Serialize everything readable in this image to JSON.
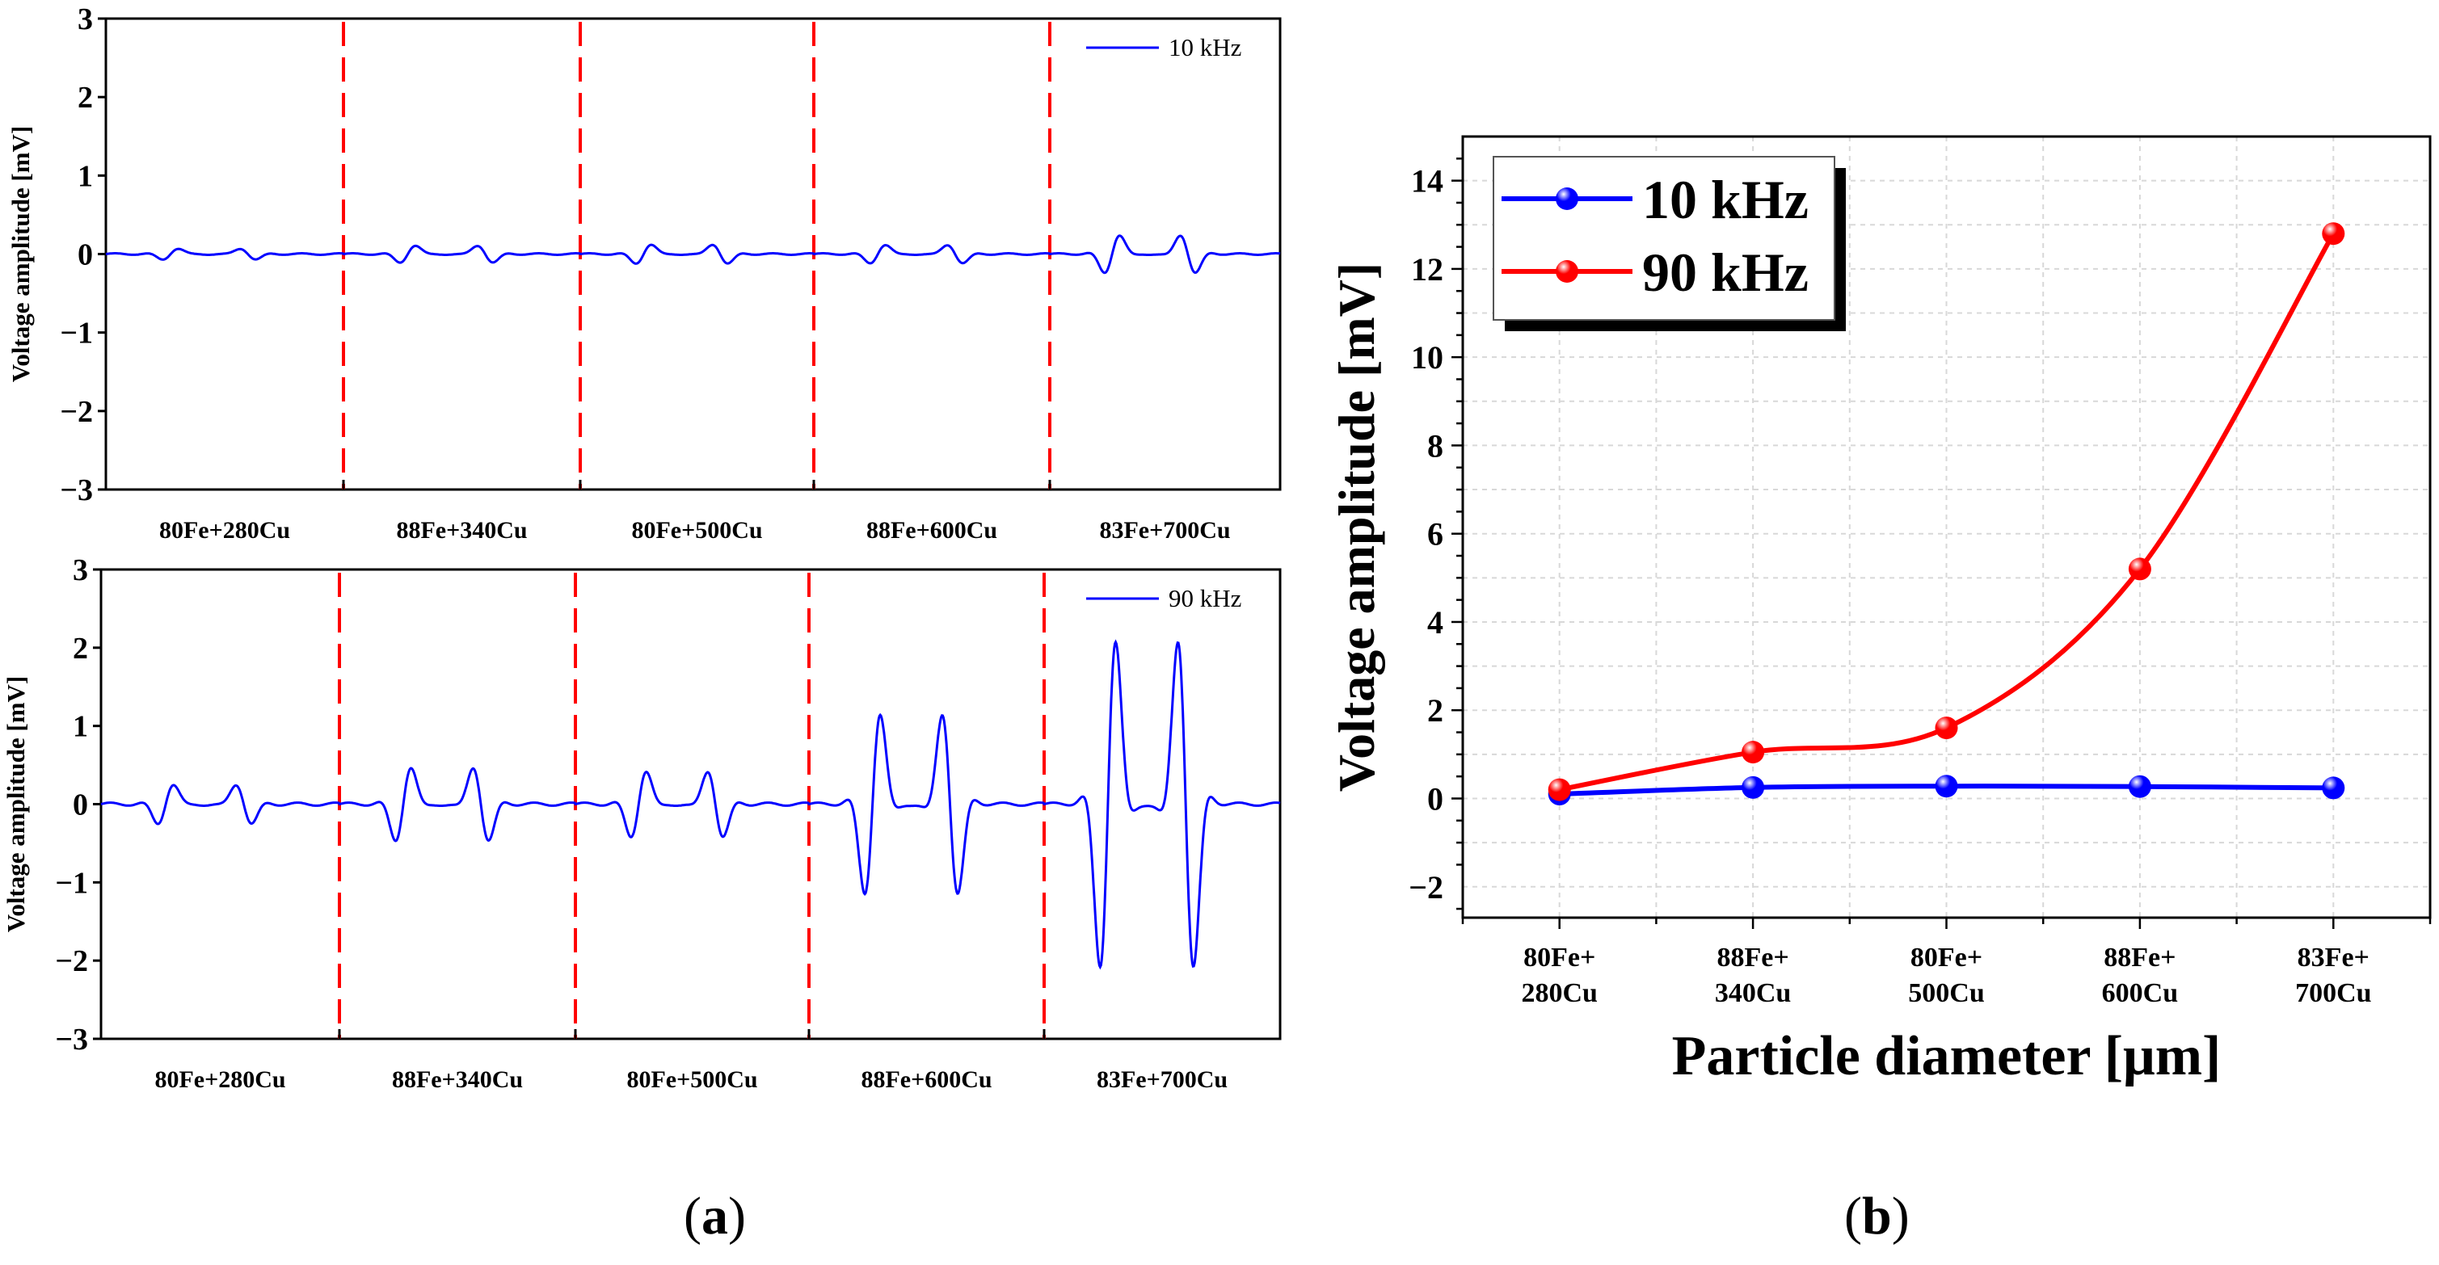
{
  "captions": {
    "a_open": "(",
    "a_letter": "a",
    "a_close": ")",
    "b_open": "(",
    "b_letter": "b",
    "b_close": ")"
  },
  "chart_data": [
    {
      "type": "line",
      "panel": "a-top",
      "ylabel": "Voltage amplitude [mV]",
      "ylim": [
        -3,
        3
      ],
      "yticks": [
        -3,
        -2,
        -1,
        0,
        1,
        2,
        3
      ],
      "legend": "10 kHz",
      "legend_position": "top-right",
      "series_color": "#0000ff",
      "separator_color": "#ff0000",
      "categories": [
        "80Fe+280Cu",
        "88Fe+340Cu",
        "80Fe+500Cu",
        "88Fe+600Cu",
        "83Fe+700Cu"
      ],
      "segments_peak_pos_mV": [
        0.08,
        0.1,
        0.13,
        0.12,
        0.25
      ],
      "segments_peak_neg_mV": [
        -0.08,
        -0.15,
        -0.15,
        -0.15,
        -0.3
      ]
    },
    {
      "type": "line",
      "panel": "a-bottom",
      "ylabel": "Voltage amplitude [mV]",
      "ylim": [
        -3,
        3
      ],
      "yticks": [
        -3,
        -2,
        -1,
        0,
        1,
        2,
        3
      ],
      "legend": "90 kHz",
      "legend_position": "top-right",
      "series_color": "#0000ff",
      "separator_color": "#ff0000",
      "categories": [
        "80Fe+280Cu",
        "88Fe+340Cu",
        "80Fe+500Cu",
        "88Fe+600Cu",
        "83Fe+700Cu"
      ],
      "segments_peak_pos_mV": [
        0.28,
        0.53,
        0.52,
        1.2,
        2.35
      ],
      "segments_peak_neg_mV": [
        -0.3,
        -0.55,
        -0.45,
        -1.45,
        -2.45
      ]
    },
    {
      "type": "line",
      "panel": "b",
      "xlabel": "Particle diameter [μm]",
      "ylabel": "Voltage amplitude [mV]",
      "ylim": [
        -2.7,
        15
      ],
      "yticks": [
        -2,
        0,
        2,
        4,
        6,
        8,
        10,
        12,
        14
      ],
      "grid": true,
      "legend_position": "top-left",
      "categories": [
        [
          "80Fe+",
          "280Cu"
        ],
        [
          "88Fe+",
          "340Cu"
        ],
        [
          "80Fe+",
          "500Cu"
        ],
        [
          "88Fe+",
          "600Cu"
        ],
        [
          "83Fe+",
          "700Cu"
        ]
      ],
      "series": [
        {
          "name": "10 kHz",
          "color": "#0000ff",
          "values": [
            0.1,
            0.25,
            0.28,
            0.27,
            0.24
          ]
        },
        {
          "name": "90 kHz",
          "color": "#ff0000",
          "values": [
            0.2,
            1.05,
            1.6,
            5.2,
            12.8
          ]
        }
      ]
    }
  ]
}
